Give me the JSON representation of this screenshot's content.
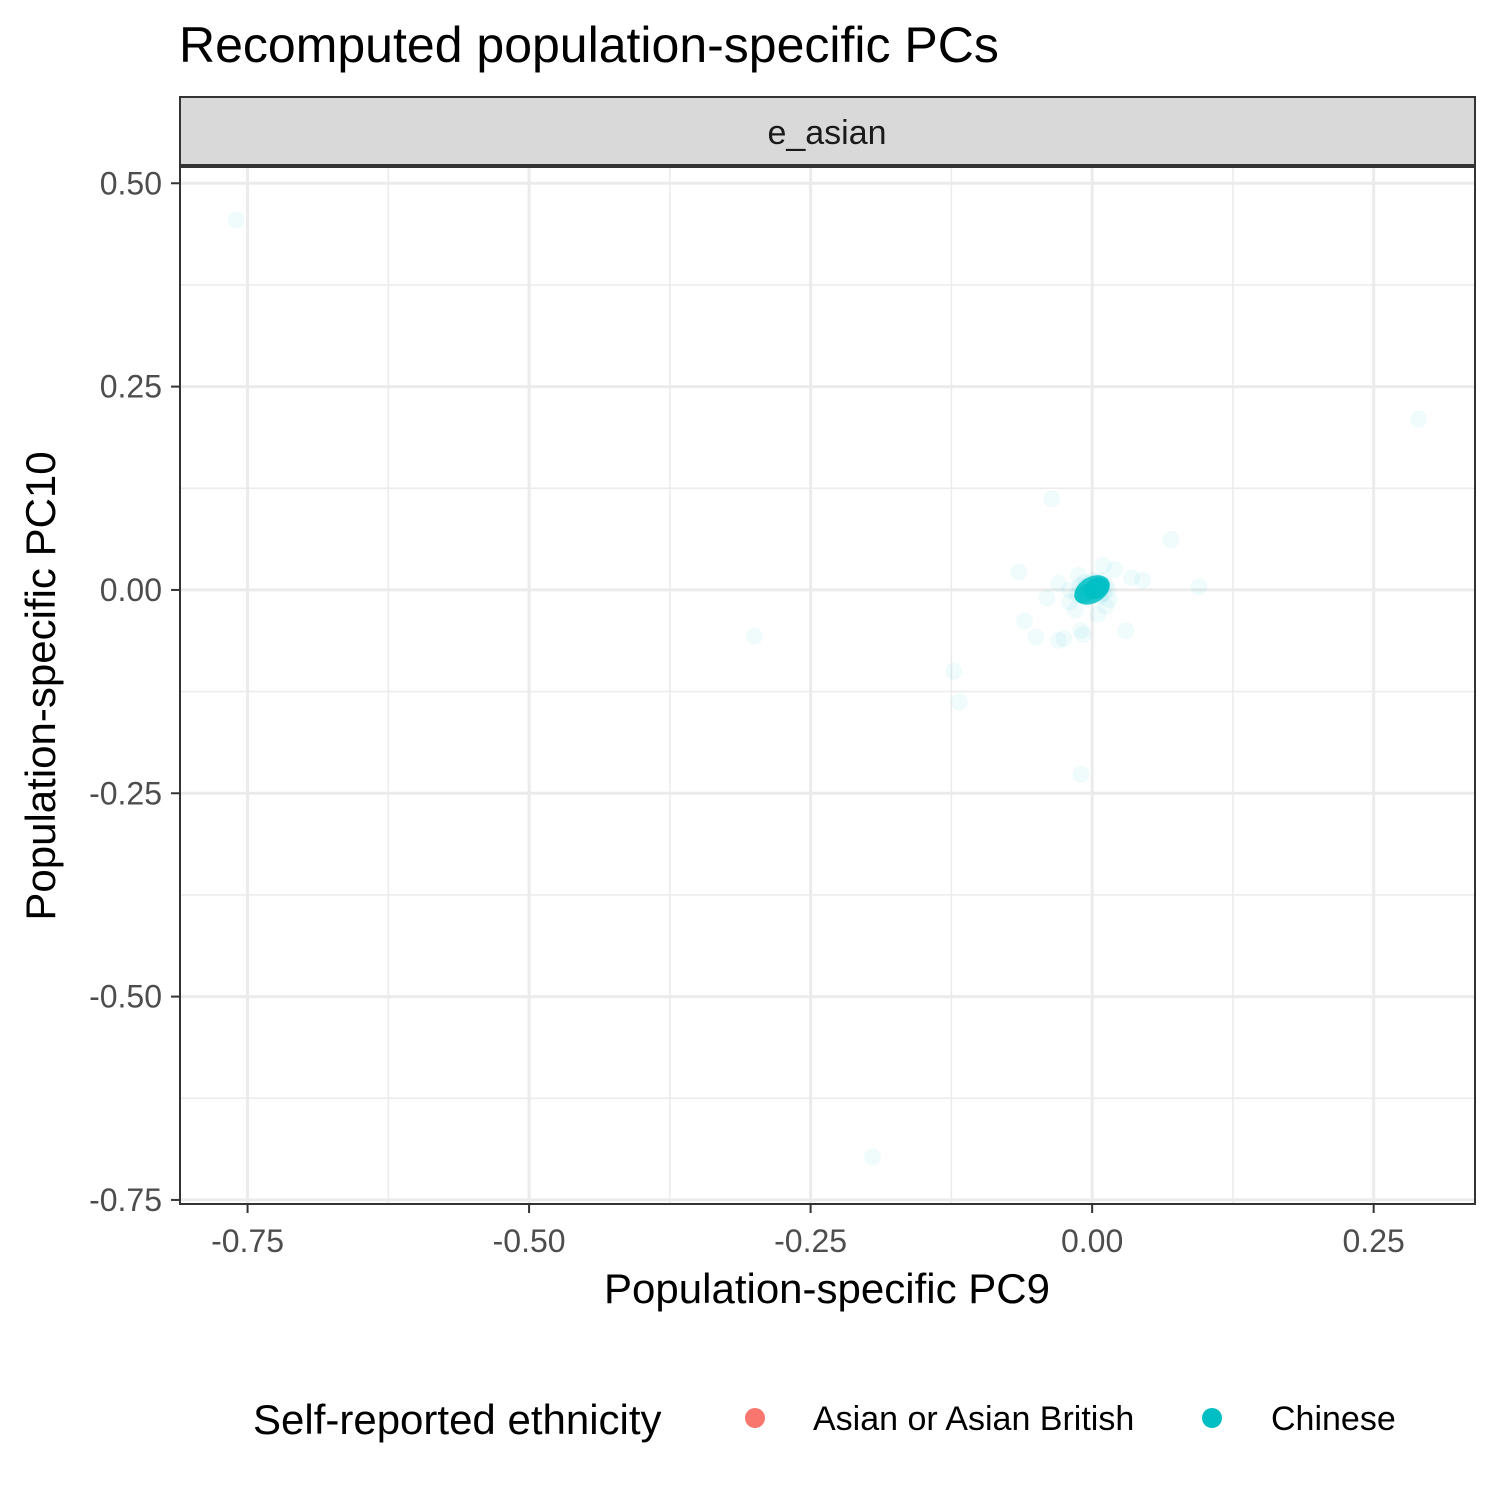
{
  "chart_data": {
    "type": "scatter",
    "title": "Recomputed population-specific PCs",
    "facet": "e_asian",
    "xlabel": "Population-specific PC9",
    "ylabel": "Population-specific PC10",
    "xlim": [
      -0.81,
      0.34
    ],
    "ylim": [
      -0.755,
      0.52
    ],
    "x_ticks": [
      -0.75,
      -0.5,
      -0.25,
      0.0,
      0.25
    ],
    "x_tick_labels": [
      "-0.75",
      "-0.50",
      "-0.25",
      "0.00",
      "0.25"
    ],
    "y_ticks": [
      0.5,
      0.25,
      0.0,
      -0.25,
      -0.5,
      -0.75
    ],
    "y_tick_labels": [
      "0.50",
      "0.25",
      "0.00",
      "-0.25",
      "-0.50",
      "-0.75"
    ],
    "grid": true,
    "legend": {
      "title": "Self-reported ethnicity",
      "position": "bottom",
      "entries": [
        {
          "label": "Asian or Asian British",
          "color": "#F8766D"
        },
        {
          "label": "Chinese",
          "color": "#00BFC4"
        }
      ]
    },
    "series": [
      {
        "name": "Chinese",
        "color": "#00BFC4",
        "points": [
          [
            -0.76,
            0.455
          ],
          [
            0.29,
            0.21
          ],
          [
            -0.036,
            0.112
          ],
          [
            0.07,
            0.062
          ],
          [
            -0.065,
            0.022
          ],
          [
            -0.03,
            0.008
          ],
          [
            -0.02,
            0.0
          ],
          [
            -0.04,
            -0.01
          ],
          [
            0.035,
            0.015
          ],
          [
            0.045,
            0.012
          ],
          [
            0.095,
            0.004
          ],
          [
            -0.06,
            -0.038
          ],
          [
            -0.05,
            -0.058
          ],
          [
            -0.03,
            -0.062
          ],
          [
            -0.025,
            -0.06
          ],
          [
            -0.01,
            -0.05
          ],
          [
            -0.008,
            -0.055
          ],
          [
            0.03,
            -0.05
          ],
          [
            -0.3,
            -0.057
          ],
          [
            -0.123,
            -0.1
          ],
          [
            -0.118,
            -0.138
          ],
          [
            -0.01,
            -0.227
          ],
          [
            -0.195,
            -0.697
          ],
          [
            0.01,
            0.03
          ],
          [
            0.012,
            -0.02
          ],
          [
            -0.015,
            -0.025
          ],
          [
            0.02,
            0.025
          ],
          [
            -0.012,
            0.018
          ],
          [
            0.005,
            -0.03
          ],
          [
            -0.02,
            -0.015
          ],
          [
            0.015,
            -0.012
          ],
          [
            0.0,
            0.0
          ],
          [
            0.004,
            0.004
          ],
          [
            -0.004,
            -0.004
          ],
          [
            0.008,
            0.002
          ],
          [
            -0.006,
            0.003
          ],
          [
            0.002,
            -0.006
          ],
          [
            0.006,
            0.007
          ],
          [
            -0.002,
            0.008
          ],
          [
            0.01,
            -0.004
          ],
          [
            -0.008,
            -0.002
          ],
          [
            0.003,
            0.01
          ],
          [
            -0.003,
            -0.009
          ],
          [
            0.012,
            0.006
          ],
          [
            -0.011,
            0.005
          ],
          [
            0.007,
            -0.008
          ],
          [
            -0.007,
            0.009
          ],
          [
            0.014,
            0.0
          ],
          [
            -0.013,
            -0.006
          ],
          [
            0.001,
            0.012
          ],
          [
            0.009,
            0.011
          ]
        ]
      }
    ]
  }
}
